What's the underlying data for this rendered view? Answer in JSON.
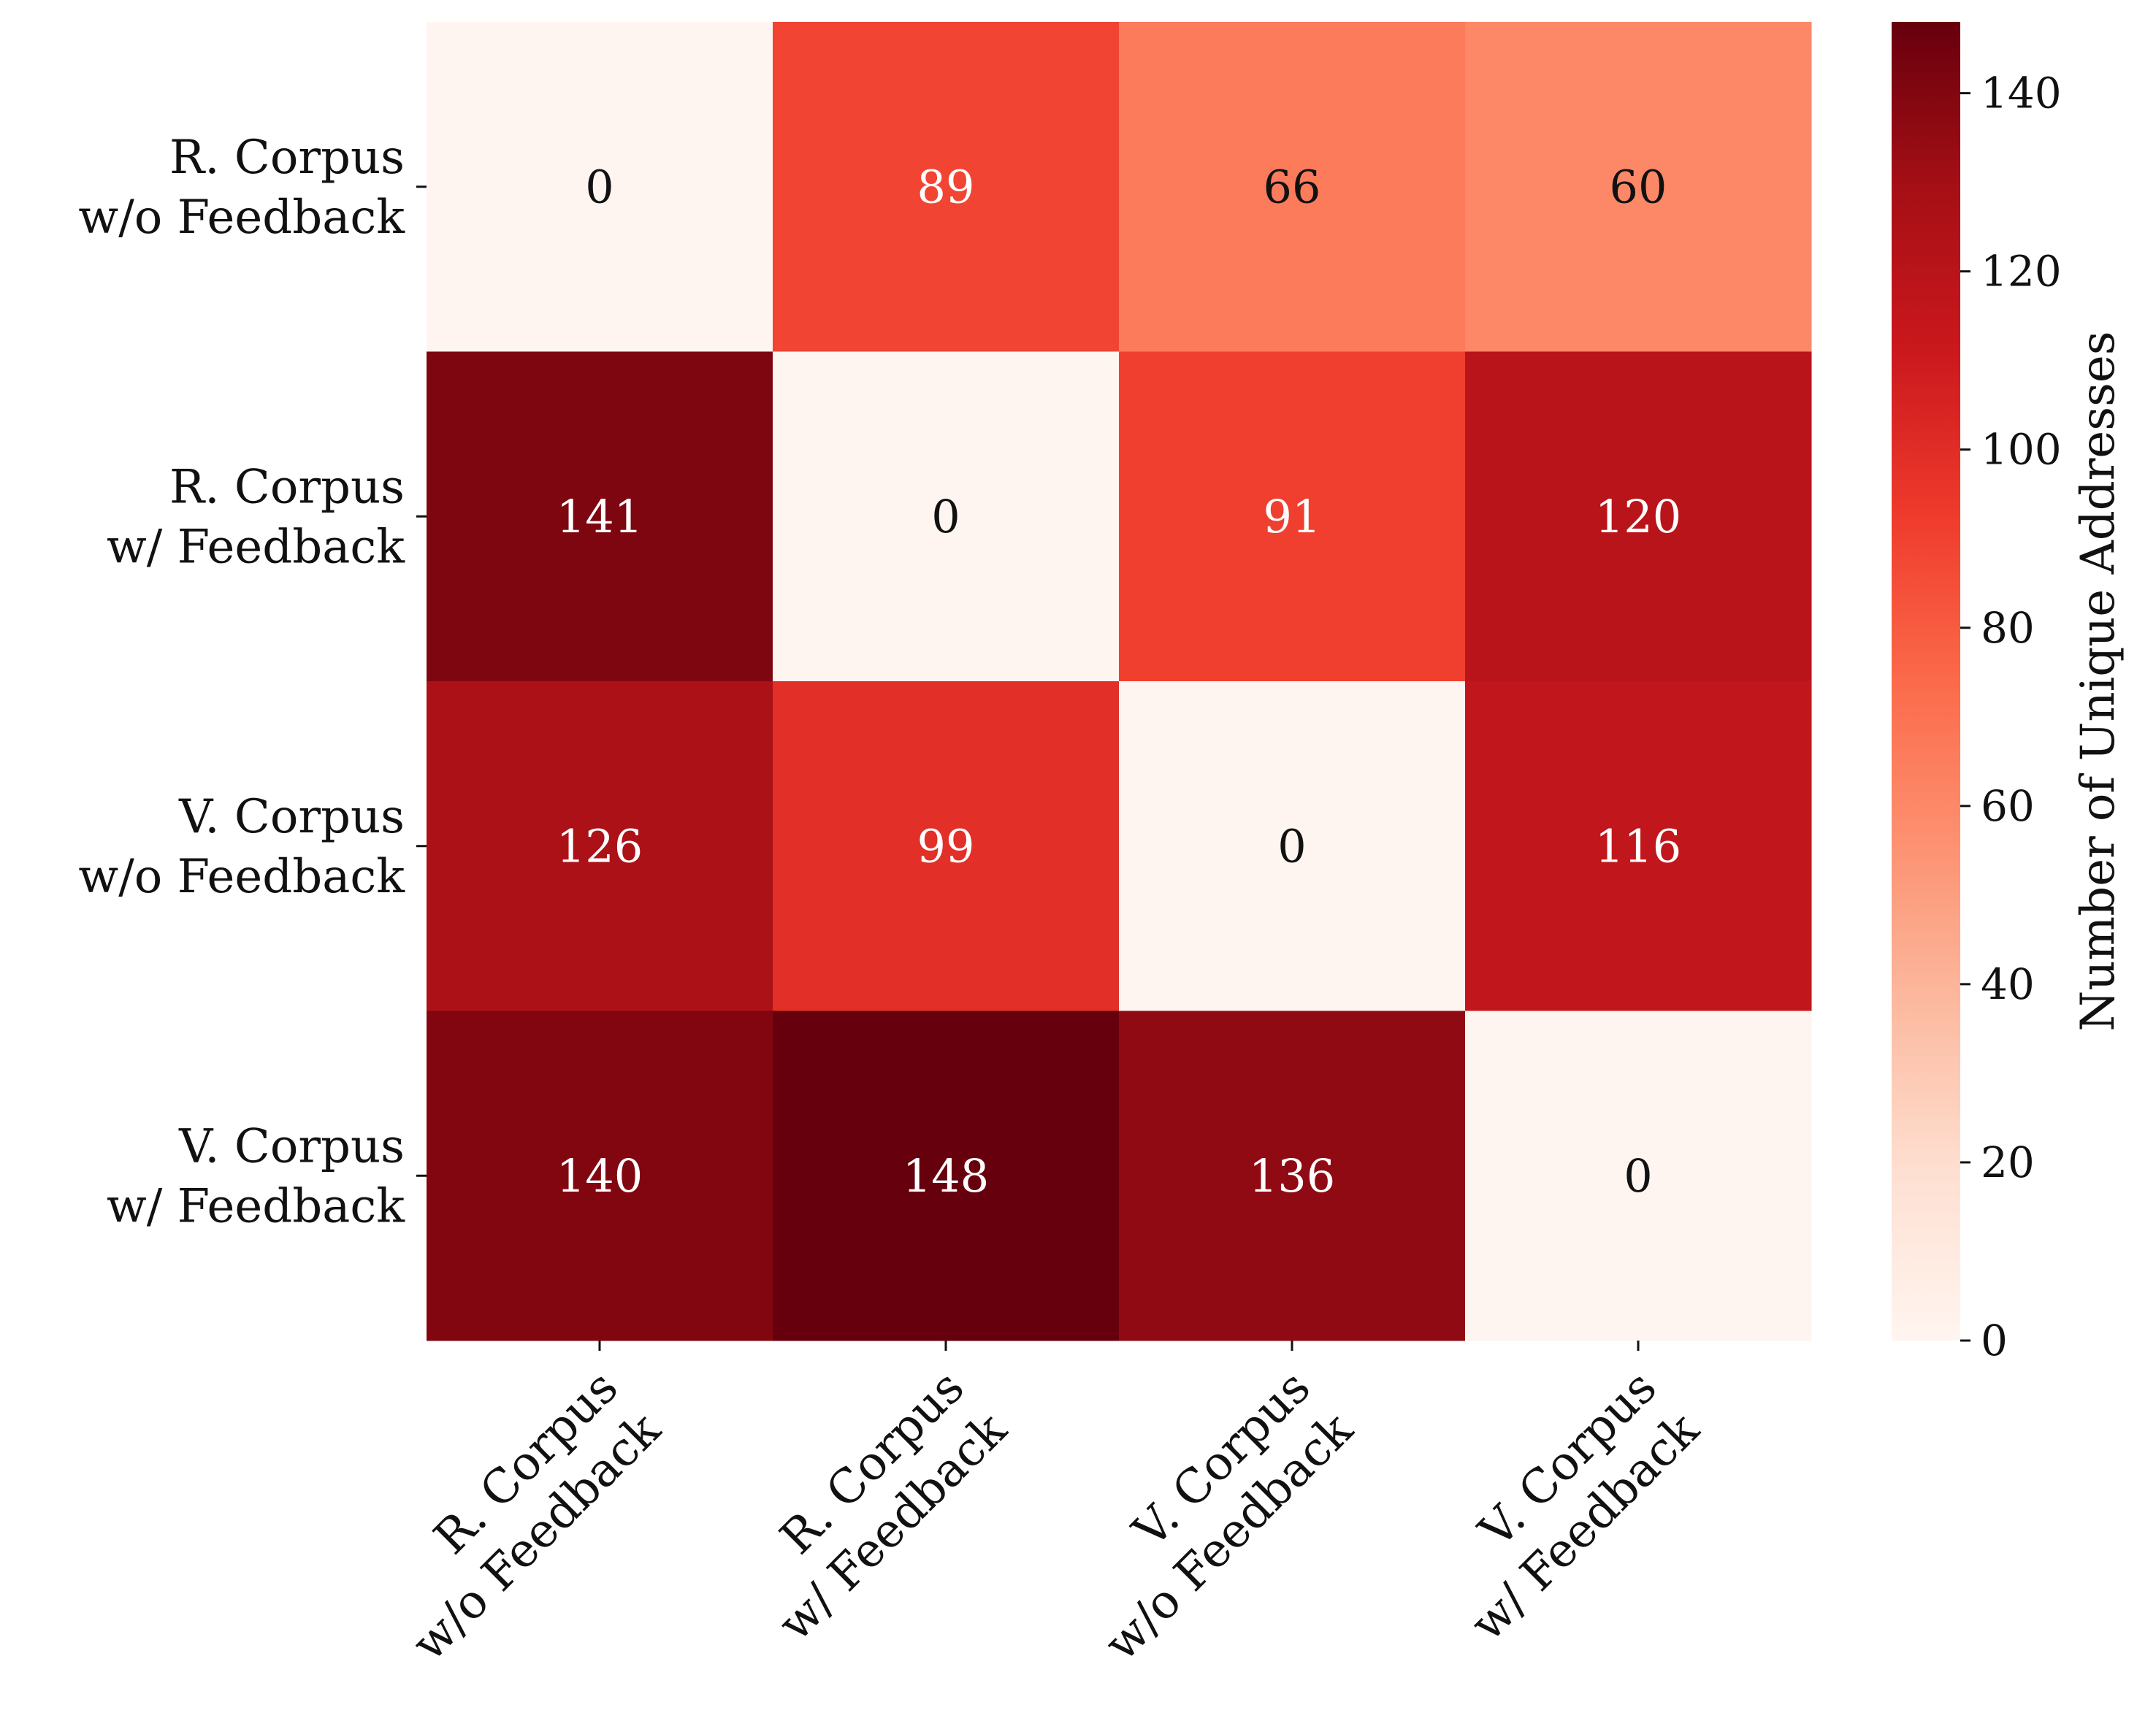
{
  "chart_data": {
    "type": "heatmap",
    "row_labels": [
      [
        "R. Corpus",
        "w/o Feedback"
      ],
      [
        "R. Corpus",
        "w/ Feedback"
      ],
      [
        "V. Corpus",
        "w/o Feedback"
      ],
      [
        "V. Corpus",
        "w/ Feedback"
      ]
    ],
    "col_labels": [
      [
        "R. Corpus",
        "w/o Feedback"
      ],
      [
        "R. Corpus",
        "w/ Feedback"
      ],
      [
        "V. Corpus",
        "w/o Feedback"
      ],
      [
        "V. Corpus",
        "w/ Feedback"
      ]
    ],
    "values": [
      [
        0,
        89,
        66,
        60
      ],
      [
        141,
        0,
        91,
        120
      ],
      [
        126,
        99,
        0,
        116
      ],
      [
        140,
        148,
        136,
        0
      ]
    ],
    "colorbar": {
      "label": "Number of Unique Addresses",
      "range": [
        0,
        148
      ],
      "ticks": [
        0,
        20,
        40,
        60,
        80,
        100,
        120,
        140
      ],
      "colormap": "Reds",
      "colormap_stops": [
        "#fff5f0",
        "#fee0d2",
        "#fcbba1",
        "#fc9272",
        "#fb6a4a",
        "#ef3b2c",
        "#cb181d",
        "#a50f15",
        "#67000d"
      ]
    },
    "annotation_colors": {
      "light": "#ffffff",
      "dark": "#111111"
    }
  }
}
